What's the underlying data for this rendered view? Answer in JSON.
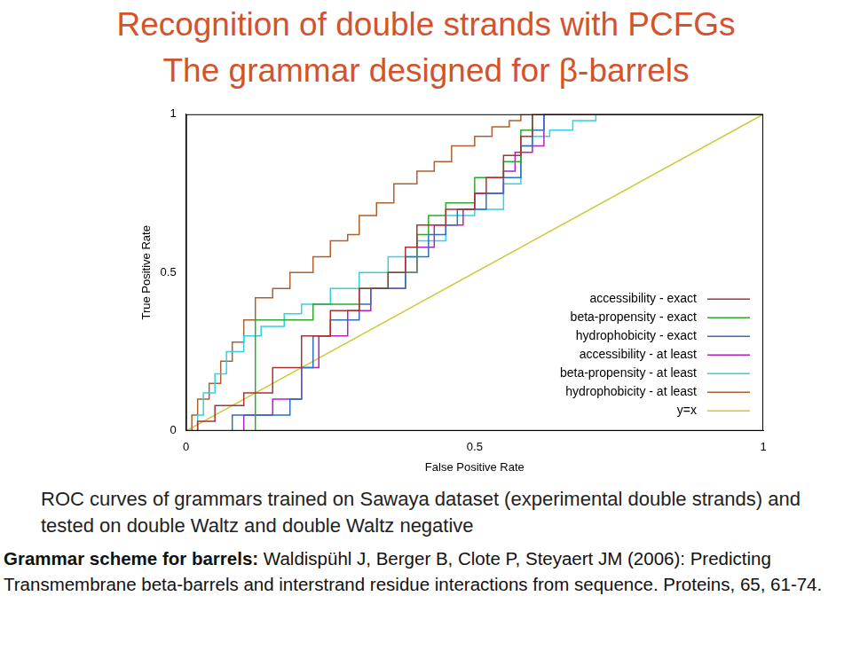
{
  "chart_data": {
    "type": "line",
    "title": "Recognition of double strands with PCFGs",
    "subtitle": "The grammar designed for β-barrels",
    "x_label": "False Positive Rate",
    "y_label": "True Positive Rate",
    "xlim": [
      0,
      1
    ],
    "xticks": [
      0,
      0.5,
      1
    ],
    "ylim": [
      0,
      1
    ],
    "yticks": [
      0,
      0.5,
      1
    ],
    "grid": false,
    "legend": "bottom right",
    "series": [
      {
        "name": "accessibility - exact",
        "color": "#a83232",
        "line_style": "steps",
        "x": [
          0,
          0.02,
          0.05,
          0.1,
          0.15,
          0.2,
          0.25,
          0.3,
          0.35,
          0.38,
          0.4,
          0.45,
          0.5,
          0.52,
          0.55,
          0.58,
          0.6,
          1
        ],
        "values": [
          0,
          0.03,
          0.08,
          0.12,
          0.2,
          0.3,
          0.38,
          0.45,
          0.5,
          0.58,
          0.65,
          0.7,
          0.75,
          0.8,
          0.87,
          0.93,
          1,
          1
        ]
      },
      {
        "name": "beta-propensity - exact",
        "color": "#2ea82e",
        "line_style": "steps",
        "x": [
          0,
          0.12,
          0.12,
          0.22,
          0.3,
          0.35,
          0.4,
          0.42,
          0.45,
          0.5,
          0.55,
          0.58,
          0.6,
          1
        ],
        "values": [
          0,
          0,
          0.35,
          0.4,
          0.45,
          0.5,
          0.62,
          0.68,
          0.72,
          0.8,
          0.85,
          0.95,
          1,
          1
        ]
      },
      {
        "name": "hydrophobicity - exact",
        "color": "#2f6fbf",
        "line_style": "steps",
        "x": [
          0,
          0.06,
          0.08,
          0.18,
          0.2,
          0.22,
          0.25,
          0.3,
          0.32,
          0.38,
          0.42,
          0.45,
          0.47,
          0.52,
          0.55,
          0.58,
          0.6,
          0.62,
          1
        ],
        "values": [
          0,
          0,
          0.05,
          0.1,
          0.2,
          0.3,
          0.35,
          0.4,
          0.45,
          0.55,
          0.62,
          0.65,
          0.7,
          0.75,
          0.8,
          0.9,
          0.95,
          1,
          1
        ]
      },
      {
        "name": "accessibility - at least",
        "color": "#b51fc4",
        "line_style": "steps",
        "x": [
          0,
          0.1,
          0.15,
          0.2,
          0.23,
          0.28,
          0.32,
          0.38,
          0.4,
          0.43,
          0.48,
          0.5,
          0.55,
          0.57,
          0.6,
          0.62,
          1
        ],
        "values": [
          0,
          0.05,
          0.1,
          0.2,
          0.3,
          0.38,
          0.45,
          0.5,
          0.58,
          0.65,
          0.7,
          0.75,
          0.82,
          0.88,
          0.9,
          1,
          1
        ]
      },
      {
        "name": "beta-propensity - at least",
        "color": "#2fd3e3",
        "line_style": "steps",
        "x": [
          0,
          0.02,
          0.03,
          0.05,
          0.07,
          0.1,
          0.13,
          0.17,
          0.2,
          0.25,
          0.3,
          0.35,
          0.4,
          0.45,
          0.5,
          0.55,
          0.58,
          0.6,
          0.63,
          0.67,
          0.71,
          1
        ],
        "values": [
          0,
          0.05,
          0.12,
          0.18,
          0.25,
          0.3,
          0.33,
          0.37,
          0.4,
          0.45,
          0.5,
          0.55,
          0.6,
          0.68,
          0.7,
          0.78,
          0.9,
          0.93,
          0.95,
          0.98,
          1,
          1
        ]
      },
      {
        "name": "hydrophobicity - at least",
        "color": "#b0602c",
        "line_style": "steps",
        "x": [
          0,
          0.01,
          0.02,
          0.04,
          0.06,
          0.08,
          0.1,
          0.12,
          0.15,
          0.18,
          0.22,
          0.25,
          0.28,
          0.3,
          0.33,
          0.36,
          0.4,
          0.43,
          0.46,
          0.5,
          0.53,
          0.56,
          0.58,
          1
        ],
        "values": [
          0,
          0.05,
          0.1,
          0.15,
          0.22,
          0.28,
          0.35,
          0.42,
          0.45,
          0.5,
          0.55,
          0.6,
          0.62,
          0.68,
          0.72,
          0.78,
          0.82,
          0.85,
          0.9,
          0.93,
          0.96,
          0.98,
          1,
          1
        ]
      },
      {
        "name": "y=x",
        "color": "#c9c934",
        "line_style": "solid",
        "x": [
          0,
          1
        ],
        "values": [
          0,
          1
        ]
      }
    ]
  },
  "caption": {
    "text": "ROC curves of grammars trained on Sawaya dataset (experimental double strands) and tested on double Waltz and double Waltz negative",
    "reference_label": "Grammar scheme for barrels:",
    "reference": "Waldispühl J, Berger B, Clote P, Steyaert JM (2006): Predicting Transmembrane beta-barrels and interstrand residue interactions from sequence. Proteins, 65, 61-74."
  }
}
